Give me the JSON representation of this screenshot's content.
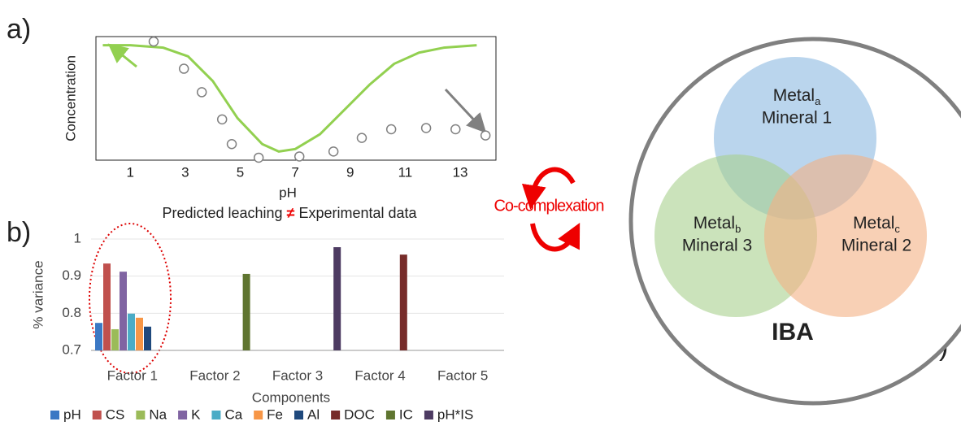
{
  "panel_labels": [
    "a)",
    "b)",
    "c)"
  ],
  "chart_data": [
    {
      "type": "line",
      "y_label": "Concentration",
      "x_label": "pH",
      "caption": [
        "Predicted leaching",
        "≠",
        "Experimental data"
      ],
      "xlim": [
        -0.25,
        14.3
      ],
      "ylim": [
        0,
        1
      ],
      "xticks": [
        1,
        3,
        5,
        7,
        9,
        11,
        13
      ],
      "series": [
        {
          "kind": "line",
          "color": "#92d050",
          "x": [
            0,
            1,
            2.2,
            3.1,
            4.0,
            4.9,
            5.8,
            6.4,
            7.0,
            7.9,
            8.8,
            9.7,
            10.6,
            11.5,
            12.4,
            13.6
          ],
          "values": [
            0.93,
            0.93,
            0.91,
            0.84,
            0.64,
            0.34,
            0.13,
            0.07,
            0.09,
            0.21,
            0.41,
            0.61,
            0.78,
            0.87,
            0.91,
            0.93
          ]
        },
        {
          "kind": "scatter",
          "color": "#808080",
          "x": [
            1.85,
            2.95,
            3.6,
            4.34,
            4.69,
            5.67,
            7.15,
            8.39,
            9.42,
            10.49,
            11.76,
            12.83,
            13.92
          ],
          "values": [
            0.96,
            0.74,
            0.55,
            0.33,
            0.13,
            0.02,
            0.03,
            0.07,
            0.18,
            0.25,
            0.26,
            0.25,
            0.2
          ]
        }
      ]
    },
    {
      "type": "bar",
      "y_label": "% variance",
      "x_label": "Components",
      "categories": [
        "Factor 1",
        "Factor 2",
        "Factor 3",
        "Factor 4",
        "Factor 5"
      ],
      "ylim": [
        0.7,
        1
      ],
      "yticks": [
        0.7,
        0.8,
        0.9,
        1
      ],
      "grid": true,
      "series": [
        {
          "name": "pH",
          "color": "#3b78c4",
          "values": [
            0.774,
            0.7,
            0.7,
            0.7,
            0.7
          ]
        },
        {
          "name": "CS",
          "color": "#c0504d",
          "values": [
            0.934,
            0.7,
            0.7,
            0.7,
            0.7
          ]
        },
        {
          "name": "Na",
          "color": "#9bbb59",
          "values": [
            0.757,
            0.7,
            0.7,
            0.7,
            0.7
          ]
        },
        {
          "name": "K",
          "color": "#8064a2",
          "values": [
            0.912,
            0.7,
            0.7,
            0.7,
            0.7
          ]
        },
        {
          "name": "Ca",
          "color": "#4bacc6",
          "values": [
            0.799,
            0.7,
            0.7,
            0.7,
            0.7
          ]
        },
        {
          "name": "Fe",
          "color": "#f79646",
          "values": [
            0.788,
            0.7,
            0.7,
            0.7,
            0.7
          ]
        },
        {
          "name": "Al",
          "color": "#1f497d",
          "values": [
            0.764,
            0.7,
            0.7,
            0.7,
            0.7
          ]
        },
        {
          "name": "DOC",
          "color": "#772c2a",
          "values": [
            0.7,
            0.7,
            0.7,
            0.958,
            0.7
          ]
        },
        {
          "name": "IC",
          "color": "#5f7530",
          "values": [
            0.7,
            0.906,
            0.7,
            0.7,
            0.7
          ]
        },
        {
          "name": "pH*IS",
          "color": "#4d3b62",
          "values": [
            0.7,
            0.7,
            0.978,
            0.7,
            0.7
          ]
        }
      ]
    }
  ],
  "annotation": "Co-complexation",
  "diagram": {
    "label": "IBA",
    "nodes": [
      {
        "metal": "Metal",
        "subscript": "a",
        "mineral": "Mineral 1"
      },
      {
        "metal": "Metal",
        "subscript": "b",
        "mineral": "Mineral 3"
      },
      {
        "metal": "Metal",
        "subscript": "c",
        "mineral": "Mineral 2"
      }
    ]
  }
}
